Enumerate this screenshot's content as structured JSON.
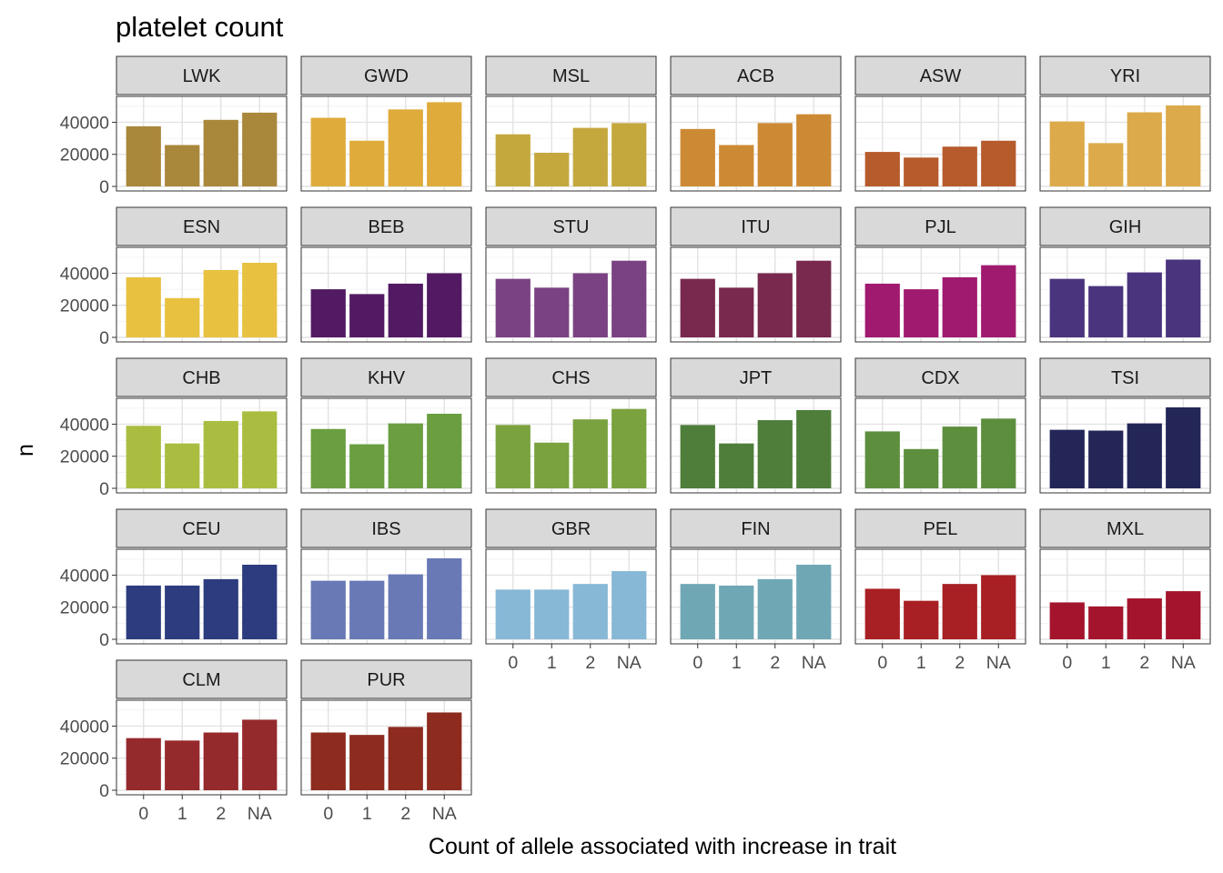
{
  "chart_data": {
    "type": "bar",
    "title": "platelet count",
    "xlabel": "Count of allele associated with increase in trait",
    "ylabel": "n",
    "categories": [
      "0",
      "1",
      "2",
      "NA"
    ],
    "ylim": [
      0,
      55000
    ],
    "y_ticks": [
      0,
      20000,
      40000
    ],
    "y_tick_labels": [
      "0",
      "20000",
      "40000"
    ],
    "grid": true,
    "legend": "none",
    "facets": [
      {
        "label": "LWK",
        "color": "#A9873B",
        "values": [
          37500,
          25800,
          41500,
          46000
        ]
      },
      {
        "label": "GWD",
        "color": "#DFAB3B",
        "values": [
          42800,
          28500,
          48000,
          52500
        ]
      },
      {
        "label": "MSL",
        "color": "#C4A83E",
        "values": [
          32500,
          21000,
          36500,
          39500
        ]
      },
      {
        "label": "ACB",
        "color": "#CD8A34",
        "values": [
          35800,
          25800,
          39500,
          45000
        ]
      },
      {
        "label": "ASW",
        "color": "#B65B2C",
        "values": [
          21500,
          18000,
          24800,
          28500
        ]
      },
      {
        "label": "YRI",
        "color": "#DCAA4A",
        "values": [
          40500,
          27000,
          46200,
          50500
        ]
      },
      {
        "label": "ESN",
        "color": "#E8C140",
        "values": [
          37500,
          24500,
          42000,
          46500
        ]
      },
      {
        "label": "BEB",
        "color": "#521A63",
        "values": [
          30000,
          27000,
          33500,
          40000
        ]
      },
      {
        "label": "STU",
        "color": "#7A4282",
        "values": [
          36500,
          31000,
          40000,
          47800
        ]
      },
      {
        "label": "ITU",
        "color": "#78294D",
        "values": [
          36500,
          31000,
          40000,
          47800
        ]
      },
      {
        "label": "PJL",
        "color": "#A01A70",
        "values": [
          33500,
          30000,
          37500,
          45000
        ]
      },
      {
        "label": "GIH",
        "color": "#4A347D",
        "values": [
          36500,
          32000,
          40500,
          48500
        ]
      },
      {
        "label": "CHB",
        "color": "#AABD40",
        "values": [
          39000,
          28000,
          42000,
          48000
        ]
      },
      {
        "label": "KHV",
        "color": "#6A9E40",
        "values": [
          37000,
          27500,
          40500,
          46500
        ]
      },
      {
        "label": "CHS",
        "color": "#7AA23F",
        "values": [
          39500,
          28500,
          43000,
          49500
        ]
      },
      {
        "label": "JPT",
        "color": "#4E7E3A",
        "values": [
          39500,
          28000,
          42500,
          48800
        ]
      },
      {
        "label": "CDX",
        "color": "#5D8E3E",
        "values": [
          35500,
          24500,
          38500,
          43500
        ]
      },
      {
        "label": "TSI",
        "color": "#232657",
        "values": [
          36500,
          36000,
          40500,
          50500
        ]
      },
      {
        "label": "CEU",
        "color": "#2D3C7E",
        "values": [
          33500,
          33500,
          37500,
          46500
        ]
      },
      {
        "label": "IBS",
        "color": "#6879B5",
        "values": [
          36500,
          36500,
          40500,
          50500
        ]
      },
      {
        "label": "GBR",
        "color": "#87B8D6",
        "values": [
          31000,
          31000,
          34500,
          42500
        ]
      },
      {
        "label": "FIN",
        "color": "#70A7B5",
        "values": [
          34500,
          33500,
          37500,
          46500
        ]
      },
      {
        "label": "PEL",
        "color": "#A81F24",
        "values": [
          31500,
          24000,
          34500,
          40000
        ]
      },
      {
        "label": "MXL",
        "color": "#A4152D",
        "values": [
          23000,
          20500,
          25500,
          30000
        ]
      },
      {
        "label": "CLM",
        "color": "#952A2D",
        "values": [
          32500,
          31000,
          36000,
          44000
        ]
      },
      {
        "label": "PUR",
        "color": "#8D2B1F",
        "values": [
          36000,
          34500,
          39500,
          48500
        ]
      }
    ]
  }
}
